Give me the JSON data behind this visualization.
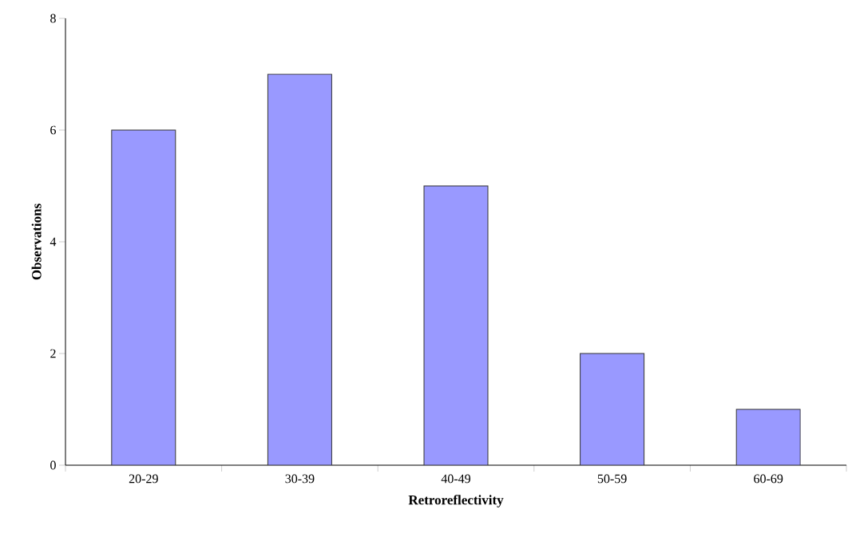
{
  "chart_data": {
    "type": "bar",
    "xlabel": "Retroreflectivity",
    "ylabel": "Observations",
    "categories": [
      "20-29",
      "30-39",
      "40-49",
      "50-59",
      "60-69"
    ],
    "values": [
      6,
      7,
      5,
      2,
      1
    ],
    "color": "#9999ff",
    "ylim": [
      0,
      8
    ],
    "yticks": [
      0,
      2,
      4,
      6,
      8
    ],
    "grid": false
  }
}
